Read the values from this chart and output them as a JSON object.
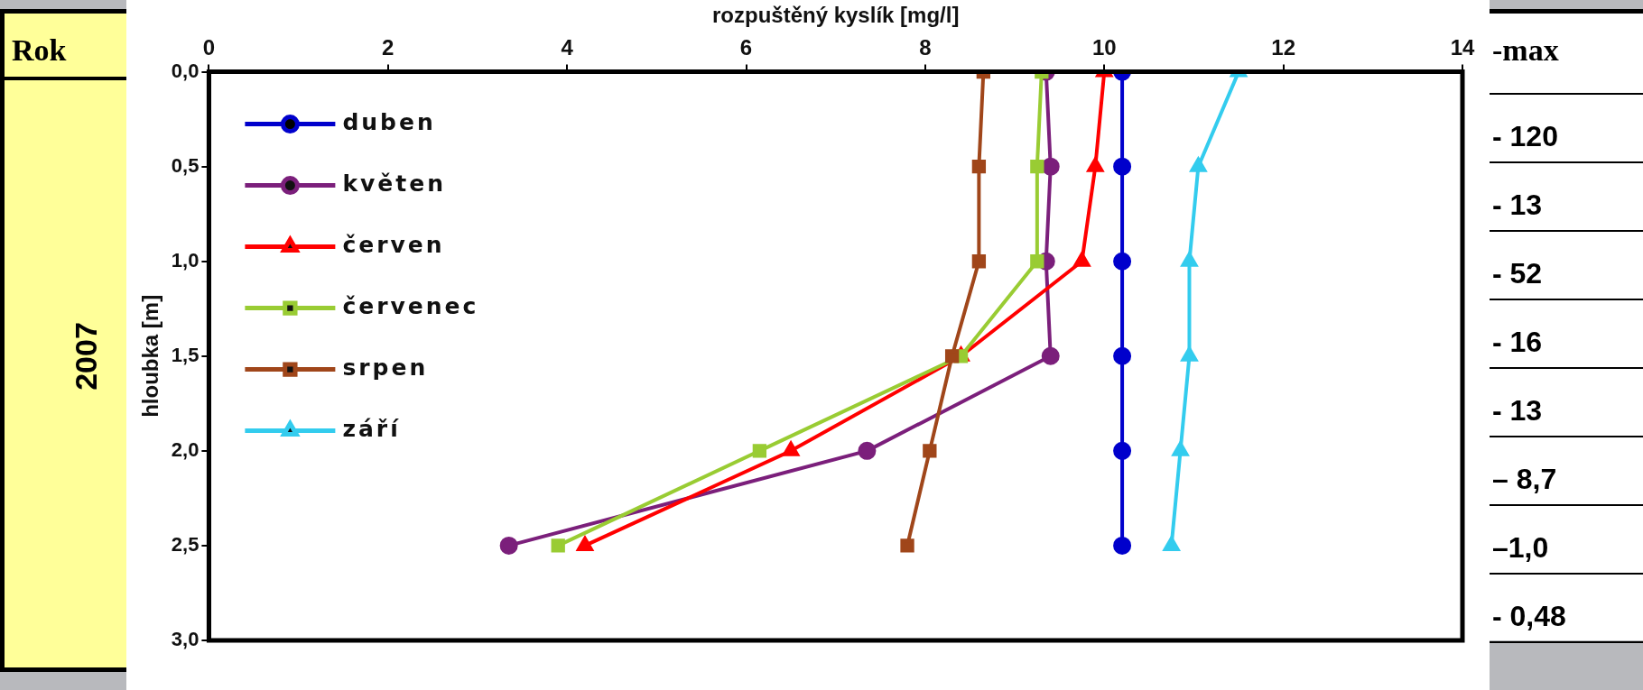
{
  "chart_data": {
    "type": "line",
    "xlabel": "rozpuštěný kyslík [mg/l]",
    "ylabel": "hloubka [m]",
    "xlim": [
      0,
      14
    ],
    "xticks": [
      0,
      2,
      4,
      6,
      8,
      10,
      12,
      14
    ],
    "ylim": [
      3,
      0
    ],
    "yticks": [
      {
        "value": 0,
        "label": "0,0"
      },
      {
        "value": 0.5,
        "label": "0,5"
      },
      {
        "value": 1,
        "label": "1,0"
      },
      {
        "value": 1.5,
        "label": "1,5"
      },
      {
        "value": 2,
        "label": "2,0"
      },
      {
        "value": 2.5,
        "label": "2,5"
      },
      {
        "value": 3,
        "label": "3,0"
      }
    ],
    "grid": false,
    "legend": "top left",
    "line_style": "solid",
    "series": [
      {
        "name": "duben",
        "color": "#0000cc",
        "marker": "circle",
        "x": [
          10.2,
          10.2,
          10.2,
          10.2,
          10.2,
          10.2
        ],
        "values": [
          0,
          0.5,
          1,
          1.5,
          2,
          2.5
        ]
      },
      {
        "name": "květen",
        "color": "#7b1f7b",
        "marker": "circle",
        "x": [
          9.35,
          9.4,
          9.35,
          9.4,
          7.35,
          3.35
        ],
        "values": [
          0,
          0.5,
          1,
          1.5,
          2,
          2.5
        ]
      },
      {
        "name": "červen",
        "color": "#ff0000",
        "marker": "triangle",
        "x": [
          10.0,
          9.9,
          9.75,
          8.4,
          6.5,
          4.2
        ],
        "values": [
          0,
          0.5,
          1,
          1.5,
          2,
          2.5
        ]
      },
      {
        "name": "červenec",
        "color": "#99cc33",
        "marker": "square",
        "x": [
          9.3,
          9.25,
          9.25,
          8.4,
          6.15,
          3.9
        ],
        "values": [
          0,
          0.5,
          1,
          1.5,
          2,
          2.5
        ]
      },
      {
        "name": "srpen",
        "color": "#a0461a",
        "marker": "square",
        "x": [
          8.65,
          8.6,
          8.6,
          8.3,
          8.05,
          7.8
        ],
        "values": [
          0,
          0.5,
          1,
          1.5,
          2,
          2.5
        ]
      },
      {
        "name": "září",
        "color": "#33ccee",
        "marker": "triangle",
        "x": [
          11.5,
          11.05,
          10.95,
          10.95,
          10.85,
          10.75
        ],
        "values": [
          0,
          0.5,
          1,
          1.5,
          2,
          2.5
        ]
      }
    ],
    "annotations": [
      "Rok",
      "2007",
      "-max",
      "- 120",
      "- 13",
      "- 52",
      "- 16",
      "- 13",
      "– 8,7",
      "–1,0",
      "- 0,48"
    ]
  }
}
